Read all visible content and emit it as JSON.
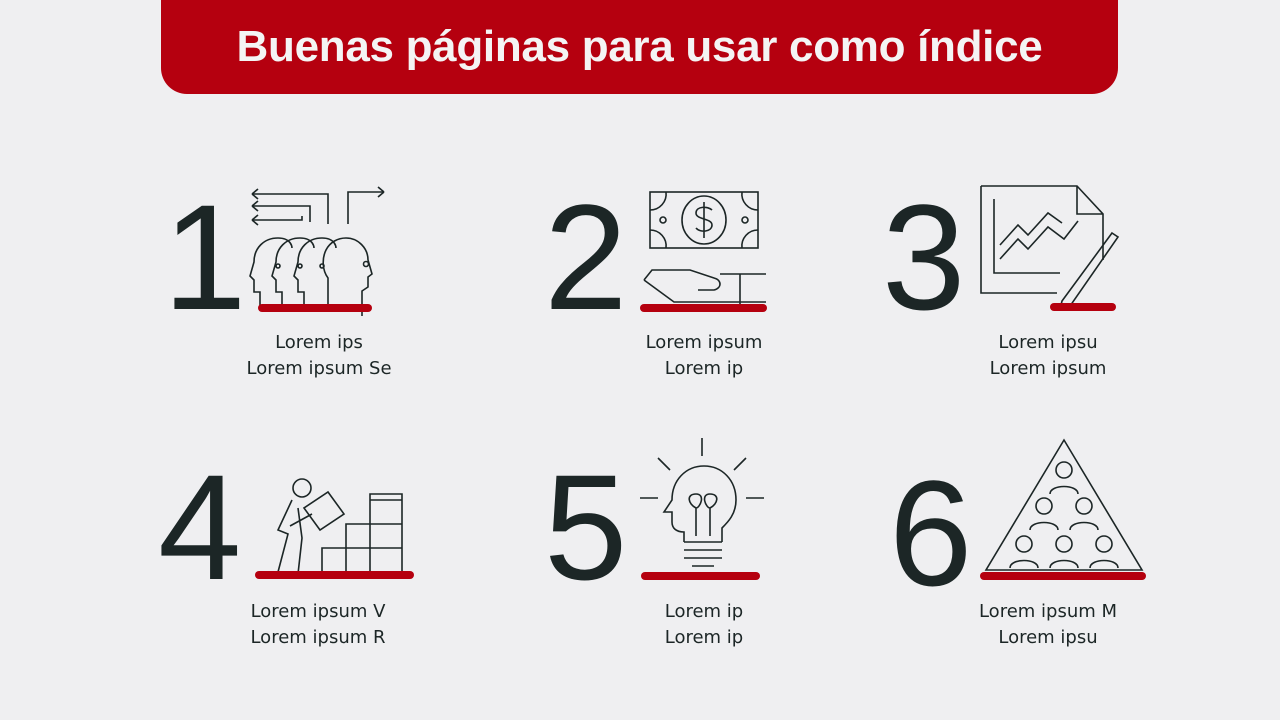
{
  "title": "Buenas páginas para usar como índice",
  "accent_color": "#b5000f",
  "items": [
    {
      "number": "1",
      "icon": "people-heads-arrows-icon",
      "lines": [
        "Lorem ips",
        "Lorem ipsum Se"
      ]
    },
    {
      "number": "2",
      "icon": "hand-money-icon",
      "lines": [
        "Lorem ipsum",
        "Lorem ip"
      ]
    },
    {
      "number": "3",
      "icon": "chart-document-pencil-icon",
      "lines": [
        "Lorem ipsu",
        "Lorem ipsum"
      ]
    },
    {
      "number": "4",
      "icon": "worker-building-blocks-icon",
      "lines": [
        "Lorem ipsum V",
        "Lorem ipsum R"
      ]
    },
    {
      "number": "5",
      "icon": "lightbulb-head-icon",
      "lines": [
        "Lorem ip",
        "Lorem ip"
      ]
    },
    {
      "number": "6",
      "icon": "people-pyramid-icon",
      "lines": [
        "Lorem ipsum M",
        "Lorem ipsu"
      ]
    }
  ]
}
